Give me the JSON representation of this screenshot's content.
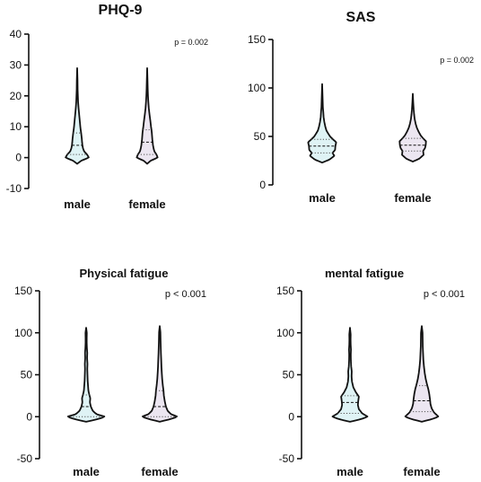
{
  "chart_data": [
    {
      "type": "violin",
      "title": "PHQ-9",
      "annotation": "p = 0.002",
      "ylim": [
        -10,
        40
      ],
      "yticks": [
        -10,
        0,
        10,
        20,
        30,
        40
      ],
      "categories": [
        "male",
        "female"
      ],
      "fill_colors": [
        "#dff3f5",
        "#ece6f1"
      ],
      "series": [
        {
          "min": -2,
          "max": 29,
          "q1": 1,
          "median": 4,
          "q3": 8,
          "density": [
            [
              -2,
              0.0
            ],
            [
              -1,
              0.35
            ],
            [
              0,
              1.0
            ],
            [
              1,
              0.85
            ],
            [
              2,
              0.6
            ],
            [
              3,
              0.5
            ],
            [
              4,
              0.45
            ],
            [
              5,
              0.42
            ],
            [
              6,
              0.4
            ],
            [
              7,
              0.37
            ],
            [
              8,
              0.34
            ],
            [
              9,
              0.3
            ],
            [
              10,
              0.27
            ],
            [
              12,
              0.22
            ],
            [
              14,
              0.17
            ],
            [
              16,
              0.12
            ],
            [
              18,
              0.08
            ],
            [
              20,
              0.06
            ],
            [
              22,
              0.04
            ],
            [
              25,
              0.03
            ],
            [
              29,
              0.0
            ]
          ]
        },
        {
          "min": -2,
          "max": 29,
          "q1": 1,
          "median": 5,
          "q3": 9,
          "density": [
            [
              -2,
              0.0
            ],
            [
              -1,
              0.3
            ],
            [
              0,
              0.9
            ],
            [
              1,
              0.8
            ],
            [
              2,
              0.62
            ],
            [
              3,
              0.55
            ],
            [
              4,
              0.5
            ],
            [
              5,
              0.47
            ],
            [
              6,
              0.44
            ],
            [
              7,
              0.42
            ],
            [
              8,
              0.4
            ],
            [
              9,
              0.37
            ],
            [
              10,
              0.33
            ],
            [
              12,
              0.27
            ],
            [
              14,
              0.2
            ],
            [
              16,
              0.14
            ],
            [
              18,
              0.1
            ],
            [
              20,
              0.07
            ],
            [
              22,
              0.05
            ],
            [
              25,
              0.03
            ],
            [
              29,
              0.0
            ]
          ]
        }
      ]
    },
    {
      "type": "violin",
      "title": "SAS",
      "annotation": "p = 0.002",
      "ylim": [
        0,
        150
      ],
      "yticks": [
        0,
        50,
        100,
        150
      ],
      "categories": [
        "male",
        "female"
      ],
      "fill_colors": [
        "#dff3f5",
        "#ece6f1"
      ],
      "series": [
        {
          "min": 23,
          "max": 104,
          "q1": 33,
          "median": 40,
          "q3": 47,
          "density": [
            [
              23,
              0.0
            ],
            [
              26,
              0.5
            ],
            [
              30,
              0.85
            ],
            [
              33,
              0.72
            ],
            [
              36,
              0.9
            ],
            [
              40,
              0.92
            ],
            [
              44,
              0.98
            ],
            [
              47,
              0.75
            ],
            [
              50,
              0.55
            ],
            [
              53,
              0.42
            ],
            [
              56,
              0.3
            ],
            [
              60,
              0.22
            ],
            [
              65,
              0.15
            ],
            [
              70,
              0.1
            ],
            [
              75,
              0.08
            ],
            [
              80,
              0.05
            ],
            [
              90,
              0.03
            ],
            [
              104,
              0.0
            ]
          ]
        },
        {
          "min": 24,
          "max": 94,
          "q1": 35,
          "median": 41,
          "q3": 48,
          "density": [
            [
              24,
              0.0
            ],
            [
              27,
              0.45
            ],
            [
              31,
              0.75
            ],
            [
              35,
              0.72
            ],
            [
              38,
              0.85
            ],
            [
              41,
              0.9
            ],
            [
              45,
              0.92
            ],
            [
              48,
              0.72
            ],
            [
              51,
              0.55
            ],
            [
              55,
              0.4
            ],
            [
              59,
              0.28
            ],
            [
              63,
              0.2
            ],
            [
              68,
              0.13
            ],
            [
              73,
              0.09
            ],
            [
              78,
              0.06
            ],
            [
              85,
              0.03
            ],
            [
              94,
              0.0
            ]
          ]
        }
      ]
    },
    {
      "type": "violin",
      "title": "Physical fatigue",
      "annotation": "p < 0.001",
      "ylim": [
        -50,
        150
      ],
      "yticks": [
        -50,
        0,
        50,
        100,
        150
      ],
      "categories": [
        "male",
        "female"
      ],
      "fill_colors": [
        "#dff3f5",
        "#ece6f1"
      ],
      "series": [
        {
          "min": -6,
          "max": 106,
          "q1": 0,
          "median": 12,
          "q3": 26,
          "density": [
            [
              -6,
              0.0
            ],
            [
              -3,
              0.6
            ],
            [
              0,
              1.0
            ],
            [
              3,
              0.55
            ],
            [
              7,
              0.35
            ],
            [
              12,
              0.25
            ],
            [
              17,
              0.2
            ],
            [
              22,
              0.22
            ],
            [
              26,
              0.17
            ],
            [
              31,
              0.12
            ],
            [
              37,
              0.1
            ],
            [
              43,
              0.08
            ],
            [
              50,
              0.07
            ],
            [
              57,
              0.06
            ],
            [
              63,
              0.07
            ],
            [
              70,
              0.05
            ],
            [
              76,
              0.06
            ],
            [
              82,
              0.04
            ],
            [
              88,
              0.03
            ],
            [
              94,
              0.03
            ],
            [
              100,
              0.035
            ],
            [
              106,
              0.0
            ]
          ]
        },
        {
          "min": -6,
          "max": 108,
          "q1": 0,
          "median": 12,
          "q3": 31,
          "density": [
            [
              -6,
              0.0
            ],
            [
              -3,
              0.55
            ],
            [
              0,
              0.95
            ],
            [
              3,
              0.6
            ],
            [
              7,
              0.42
            ],
            [
              12,
              0.33
            ],
            [
              18,
              0.27
            ],
            [
              25,
              0.22
            ],
            [
              31,
              0.2
            ],
            [
              38,
              0.16
            ],
            [
              45,
              0.13
            ],
            [
              52,
              0.11
            ],
            [
              60,
              0.09
            ],
            [
              67,
              0.08
            ],
            [
              75,
              0.065
            ],
            [
              82,
              0.055
            ],
            [
              90,
              0.045
            ],
            [
              96,
              0.04
            ],
            [
              101,
              0.035
            ],
            [
              108,
              0.0
            ]
          ]
        }
      ]
    },
    {
      "type": "violin",
      "title": "mental fatigue",
      "annotation": "p < 0.001",
      "ylim": [
        -50,
        150
      ],
      "yticks": [
        -50,
        0,
        50,
        100,
        150
      ],
      "categories": [
        "male",
        "female"
      ],
      "fill_colors": [
        "#dff3f5",
        "#ece6f1"
      ],
      "series": [
        {
          "min": -6,
          "max": 106,
          "q1": 4,
          "median": 17,
          "q3": 25,
          "density": [
            [
              -6,
              0.0
            ],
            [
              -3,
              0.55
            ],
            [
              0,
              0.9
            ],
            [
              4,
              0.62
            ],
            [
              9,
              0.45
            ],
            [
              14,
              0.4
            ],
            [
              19,
              0.42
            ],
            [
              24,
              0.45
            ],
            [
              29,
              0.3
            ],
            [
              35,
              0.17
            ],
            [
              42,
              0.1
            ],
            [
              48,
              0.08
            ],
            [
              54,
              0.09
            ],
            [
              60,
              0.06
            ],
            [
              67,
              0.045
            ],
            [
              74,
              0.04
            ],
            [
              80,
              0.05
            ],
            [
              86,
              0.035
            ],
            [
              92,
              0.03
            ],
            [
              98,
              0.035
            ],
            [
              106,
              0.0
            ]
          ]
        },
        {
          "min": -6,
          "max": 108,
          "q1": 6,
          "median": 19,
          "q3": 37,
          "density": [
            [
              -6,
              0.0
            ],
            [
              -3,
              0.5
            ],
            [
              0,
              0.85
            ],
            [
              5,
              0.62
            ],
            [
              10,
              0.5
            ],
            [
              15,
              0.44
            ],
            [
              20,
              0.42
            ],
            [
              27,
              0.38
            ],
            [
              33,
              0.33
            ],
            [
              38,
              0.27
            ],
            [
              45,
              0.2
            ],
            [
              52,
              0.15
            ],
            [
              60,
              0.11
            ],
            [
              68,
              0.08
            ],
            [
              76,
              0.065
            ],
            [
              84,
              0.05
            ],
            [
              92,
              0.045
            ],
            [
              100,
              0.04
            ],
            [
              108,
              0.0
            ]
          ]
        }
      ]
    }
  ]
}
